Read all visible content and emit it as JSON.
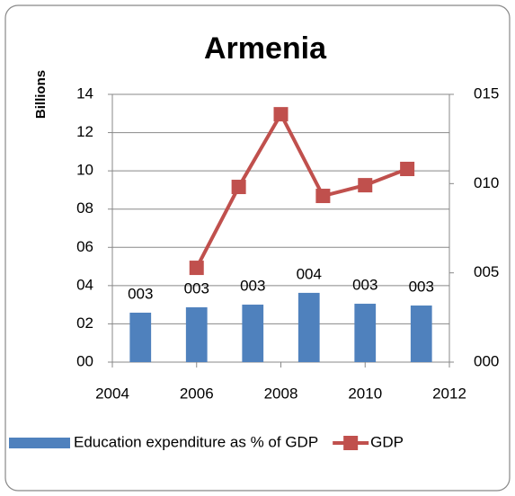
{
  "chart_data": {
    "type": "bar-line",
    "title": "Armenia",
    "ylabel": "Billions",
    "xlim": [
      2004,
      2012
    ],
    "xticks": [
      2004,
      2006,
      2008,
      2010,
      2012
    ],
    "ylim": [
      0,
      14
    ],
    "yticks": [
      {
        "value": 0,
        "label": "00"
      },
      {
        "value": 2,
        "label": "02"
      },
      {
        "value": 4,
        "label": "04"
      },
      {
        "value": 6,
        "label": "06"
      },
      {
        "value": 8,
        "label": "08"
      },
      10,
      12,
      14
    ],
    "y2lim": [
      0,
      15
    ],
    "y2ticks": [
      {
        "value": 0,
        "label": "000"
      },
      {
        "value": 5,
        "label": "005"
      },
      {
        "value": 10,
        "label": "010"
      },
      {
        "value": 15,
        "label": "015"
      }
    ],
    "grid": true,
    "series": [
      {
        "name": "Education expenditure as % of GDP",
        "type": "bar",
        "axis": "y2",
        "color": "#4f81bd",
        "values": [
          2.77,
          3.07,
          3.22,
          3.88,
          3.27,
          3.17
        ],
        "value_labels": [
          "003",
          "003",
          "003",
          "004",
          "003",
          "003"
        ]
      },
      {
        "name": "GDP",
        "type": "line",
        "color": "#c0504d",
        "x": [
          2006,
          2007,
          2008,
          2009,
          2010,
          2011
        ],
        "values": [
          4.93,
          9.16,
          12.96,
          8.69,
          9.25,
          10.1
        ]
      }
    ]
  }
}
